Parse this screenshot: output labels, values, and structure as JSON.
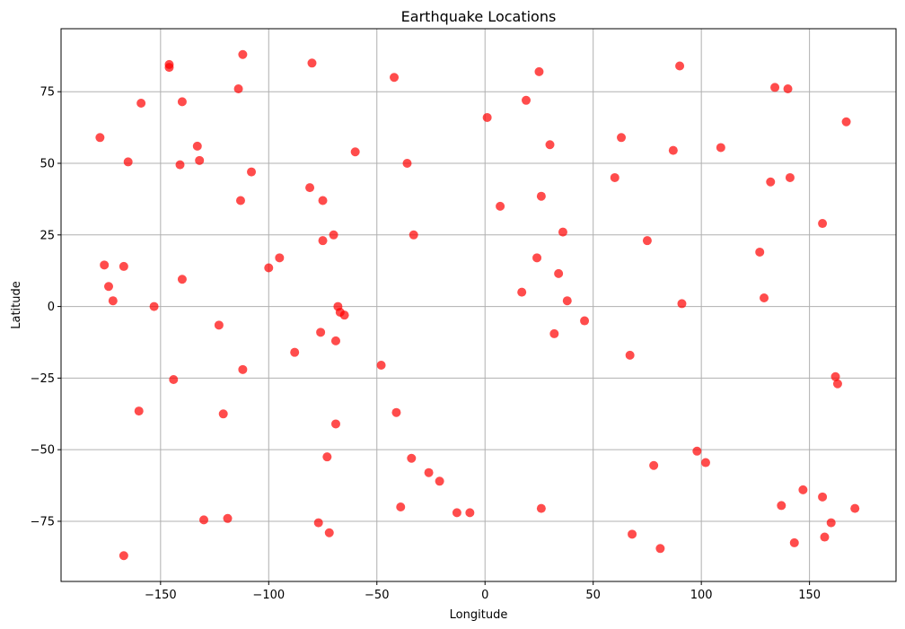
{
  "chart_data": {
    "type": "scatter",
    "title": "Earthquake Locations",
    "xlabel": "Longitude",
    "ylabel": "Latitude",
    "xlim": [
      -196,
      190
    ],
    "ylim": [
      -96,
      97
    ],
    "xticks": [
      -150,
      -100,
      -50,
      0,
      50,
      100,
      150
    ],
    "yticks": [
      -75,
      -50,
      -25,
      0,
      25,
      50,
      75
    ],
    "xtick_labels": [
      "−150",
      "−100",
      "−50",
      "0",
      "50",
      "100",
      "150"
    ],
    "ytick_labels": [
      "−75",
      "−50",
      "−25",
      "0",
      "25",
      "50",
      "75"
    ],
    "grid": true,
    "marker_color": "#ff0000",
    "points": [
      {
        "x": -178,
        "y": 59
      },
      {
        "x": -176,
        "y": 14.5
      },
      {
        "x": -174,
        "y": 7
      },
      {
        "x": -172,
        "y": 2
      },
      {
        "x": -167,
        "y": 14
      },
      {
        "x": -165,
        "y": 50.5
      },
      {
        "x": -159,
        "y": 71
      },
      {
        "x": -160,
        "y": -36.5
      },
      {
        "x": -167,
        "y": -87
      },
      {
        "x": -153,
        "y": 0
      },
      {
        "x": -146,
        "y": 84.5
      },
      {
        "x": -146,
        "y": 83.5
      },
      {
        "x": -140,
        "y": 71.5
      },
      {
        "x": -141,
        "y": 49.5
      },
      {
        "x": -140,
        "y": 9.5
      },
      {
        "x": -144,
        "y": -25.5
      },
      {
        "x": -133,
        "y": 56
      },
      {
        "x": -132,
        "y": 51
      },
      {
        "x": -130,
        "y": -74.5
      },
      {
        "x": -123,
        "y": -6.5
      },
      {
        "x": -121,
        "y": -37.5
      },
      {
        "x": -119,
        "y": -74
      },
      {
        "x": -112,
        "y": 88
      },
      {
        "x": -114,
        "y": 76
      },
      {
        "x": -113,
        "y": 37
      },
      {
        "x": -108,
        "y": 47
      },
      {
        "x": -112,
        "y": -22
      },
      {
        "x": -100,
        "y": 13.5
      },
      {
        "x": -95,
        "y": 17
      },
      {
        "x": -88,
        "y": -16
      },
      {
        "x": -80,
        "y": 85
      },
      {
        "x": -81,
        "y": 41.5
      },
      {
        "x": -75,
        "y": 37
      },
      {
        "x": -75,
        "y": 23
      },
      {
        "x": -70,
        "y": 25
      },
      {
        "x": -68,
        "y": 0
      },
      {
        "x": -67,
        "y": -2
      },
      {
        "x": -65,
        "y": -3
      },
      {
        "x": -76,
        "y": -9
      },
      {
        "x": -69,
        "y": -12
      },
      {
        "x": -69,
        "y": -41
      },
      {
        "x": -73,
        "y": -52.5
      },
      {
        "x": -77,
        "y": -75.5
      },
      {
        "x": -72,
        "y": -79
      },
      {
        "x": -60,
        "y": 54
      },
      {
        "x": -42,
        "y": 80
      },
      {
        "x": -36,
        "y": 50
      },
      {
        "x": -33,
        "y": 25
      },
      {
        "x": -48,
        "y": -20.5
      },
      {
        "x": -41,
        "y": -37
      },
      {
        "x": -34,
        "y": -53
      },
      {
        "x": -39,
        "y": -70
      },
      {
        "x": -26,
        "y": -58
      },
      {
        "x": -21,
        "y": -61
      },
      {
        "x": -13,
        "y": -72
      },
      {
        "x": -7,
        "y": -72
      },
      {
        "x": 1,
        "y": 66
      },
      {
        "x": 7,
        "y": 35
      },
      {
        "x": 19,
        "y": 72
      },
      {
        "x": 25,
        "y": 82
      },
      {
        "x": 30,
        "y": 56.5
      },
      {
        "x": 26,
        "y": 38.5
      },
      {
        "x": 36,
        "y": 26
      },
      {
        "x": 24,
        "y": 17
      },
      {
        "x": 34,
        "y": 11.5
      },
      {
        "x": 38,
        "y": 2
      },
      {
        "x": 17,
        "y": 5
      },
      {
        "x": 32,
        "y": -9.5
      },
      {
        "x": 26,
        "y": -70.5
      },
      {
        "x": 46,
        "y": -5
      },
      {
        "x": 63,
        "y": 59
      },
      {
        "x": 60,
        "y": 45
      },
      {
        "x": 67,
        "y": -17
      },
      {
        "x": 68,
        "y": -79.5
      },
      {
        "x": 75,
        "y": 23
      },
      {
        "x": 78,
        "y": -55.5
      },
      {
        "x": 81,
        "y": -84.5
      },
      {
        "x": 87,
        "y": 54.5
      },
      {
        "x": 90,
        "y": 84
      },
      {
        "x": 91,
        "y": 1
      },
      {
        "x": 98,
        "y": -50.5
      },
      {
        "x": 102,
        "y": -54.5
      },
      {
        "x": 109,
        "y": 55.5
      },
      {
        "x": 127,
        "y": 19
      },
      {
        "x": 129,
        "y": 3
      },
      {
        "x": 132,
        "y": 43.5
      },
      {
        "x": 134,
        "y": 76.5
      },
      {
        "x": 140,
        "y": 76
      },
      {
        "x": 141,
        "y": 45
      },
      {
        "x": 137,
        "y": -69.5
      },
      {
        "x": 143,
        "y": -82.5
      },
      {
        "x": 147,
        "y": -64
      },
      {
        "x": 156,
        "y": 29
      },
      {
        "x": 156,
        "y": -66.5
      },
      {
        "x": 157,
        "y": -80.5
      },
      {
        "x": 160,
        "y": -75.5
      },
      {
        "x": 162,
        "y": -24.5
      },
      {
        "x": 163,
        "y": -27
      },
      {
        "x": 167,
        "y": 64.5
      },
      {
        "x": 171,
        "y": -70.5
      }
    ]
  }
}
